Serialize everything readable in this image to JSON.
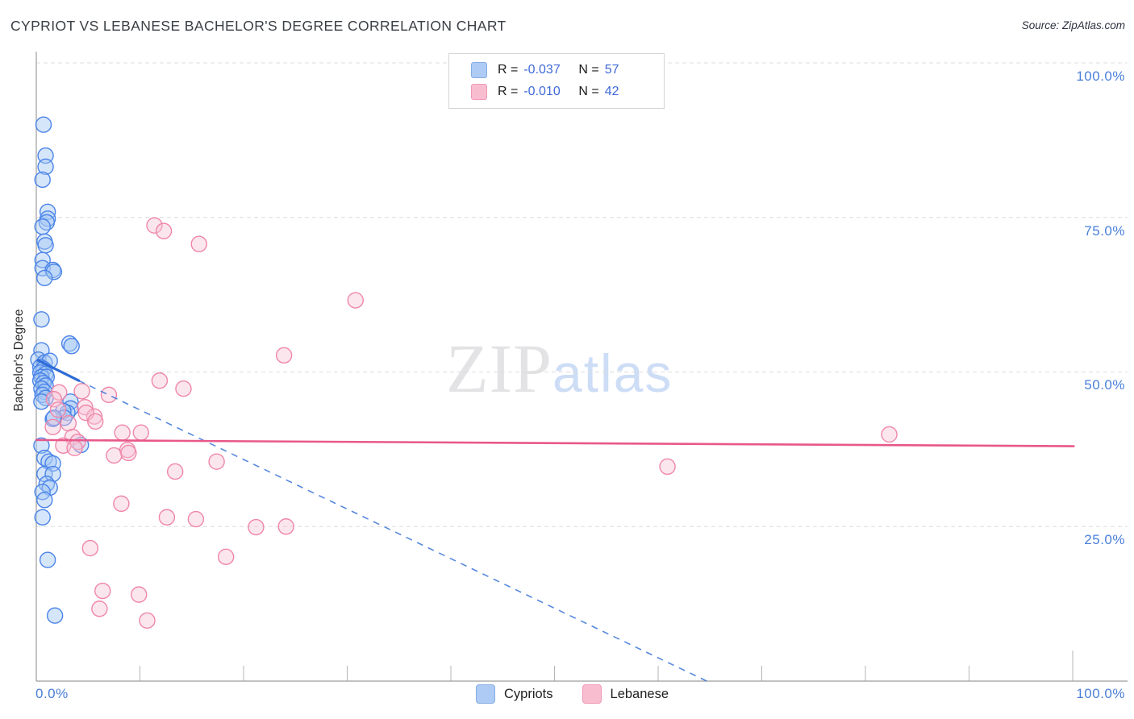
{
  "header": {
    "title": "CYPRIOT VS LEBANESE BACHELOR'S DEGREE CORRELATION CHART",
    "source": "Source: ZipAtlas.com"
  },
  "watermark": {
    "part1": "ZIP",
    "part2": "atlas"
  },
  "legend_box": {
    "rows": [
      {
        "series": "Cypriots",
        "r_label": "R =",
        "r_value": "-0.037",
        "n_label": "N =",
        "n_value": "57"
      },
      {
        "series": "Lebanese",
        "r_label": "R =",
        "r_value": "-0.010",
        "n_label": "N =",
        "n_value": "42"
      }
    ]
  },
  "bottom_legend": {
    "items": [
      {
        "label": "Cypriots"
      },
      {
        "label": "Lebanese"
      }
    ]
  },
  "chart_data": {
    "type": "scatter",
    "title": "CYPRIOT VS LEBANESE BACHELOR'S DEGREE CORRELATION CHART",
    "xlabel": "",
    "ylabel": "Bachelor's Degree",
    "grid": "horizontal dashed gridlines at 25/50/75/100",
    "legend_position": "top-center and bottom-center",
    "x_axis": {
      "min": 0,
      "max": 100,
      "tick_values": [
        0,
        10,
        20,
        30,
        40,
        50,
        60,
        70,
        80,
        90,
        100
      ],
      "edge_labels": [
        "0.0%",
        "100.0%"
      ]
    },
    "y_axis": {
      "min": 0,
      "max": 100,
      "gridline_values": [
        100,
        75,
        50,
        25
      ],
      "tick_labels": [
        "100.0%",
        "75.0%",
        "50.0%",
        "25.0%"
      ]
    },
    "series": [
      {
        "name": "Cypriots",
        "R": -0.037,
        "N": 57,
        "stroke": "#4b84e8",
        "fill": "rgba(164,199,244,0.45)",
        "points": [
          [
            0.7,
            90.0
          ],
          [
            0.9,
            85.0
          ],
          [
            0.9,
            83.2
          ],
          [
            0.6,
            81.1
          ],
          [
            1.1,
            75.9
          ],
          [
            1.1,
            74.8
          ],
          [
            1.0,
            74.2
          ],
          [
            0.6,
            73.5
          ],
          [
            0.8,
            71.1
          ],
          [
            0.9,
            70.5
          ],
          [
            0.6,
            68.1
          ],
          [
            0.6,
            66.8
          ],
          [
            1.6,
            66.5
          ],
          [
            1.7,
            66.2
          ],
          [
            0.8,
            65.2
          ],
          [
            0.5,
            58.5
          ],
          [
            3.2,
            54.6
          ],
          [
            3.4,
            54.2
          ],
          [
            0.5,
            53.5
          ],
          [
            0.2,
            52.0
          ],
          [
            0.8,
            51.5
          ],
          [
            1.3,
            51.8
          ],
          [
            0.4,
            50.8
          ],
          [
            0.7,
            50.5
          ],
          [
            0.4,
            49.9
          ],
          [
            0.9,
            49.7
          ],
          [
            0.5,
            49.2
          ],
          [
            1.0,
            49.2
          ],
          [
            0.4,
            48.6
          ],
          [
            0.7,
            48.2
          ],
          [
            0.9,
            47.8
          ],
          [
            0.5,
            47.3
          ],
          [
            0.8,
            46.8
          ],
          [
            0.6,
            46.3
          ],
          [
            0.9,
            45.8
          ],
          [
            0.5,
            45.2
          ],
          [
            3.3,
            45.2
          ],
          [
            3.3,
            44.1
          ],
          [
            3.0,
            43.4
          ],
          [
            2.6,
            43.7
          ],
          [
            2.7,
            42.6
          ],
          [
            1.6,
            42.4
          ],
          [
            1.7,
            42.6
          ],
          [
            4.3,
            38.2
          ],
          [
            0.5,
            38.1
          ],
          [
            0.8,
            36.1
          ],
          [
            1.2,
            35.5
          ],
          [
            1.6,
            35.2
          ],
          [
            0.8,
            33.5
          ],
          [
            1.6,
            33.5
          ],
          [
            1.0,
            31.9
          ],
          [
            1.3,
            31.3
          ],
          [
            0.6,
            30.6
          ],
          [
            0.8,
            29.3
          ],
          [
            0.6,
            26.5
          ],
          [
            1.1,
            19.6
          ],
          [
            1.8,
            10.6
          ]
        ]
      },
      {
        "name": "Lebanese",
        "R": -0.01,
        "N": 42,
        "stroke": "#ef87a8",
        "fill": "rgba(249,196,214,0.42)",
        "points": [
          [
            11.4,
            73.7
          ],
          [
            12.3,
            72.8
          ],
          [
            15.7,
            70.7
          ],
          [
            30.8,
            61.6
          ],
          [
            23.9,
            52.7
          ],
          [
            11.9,
            48.6
          ],
          [
            14.2,
            47.3
          ],
          [
            7.0,
            46.3
          ],
          [
            4.4,
            46.9
          ],
          [
            2.2,
            46.7
          ],
          [
            1.7,
            45.6
          ],
          [
            4.7,
            44.3
          ],
          [
            5.6,
            42.8
          ],
          [
            3.1,
            41.7
          ],
          [
            3.5,
            39.5
          ],
          [
            4.0,
            38.7
          ],
          [
            2.6,
            38.1
          ],
          [
            3.7,
            37.7
          ],
          [
            8.3,
            40.2
          ],
          [
            10.1,
            40.2
          ],
          [
            8.8,
            37.4
          ],
          [
            7.5,
            36.5
          ],
          [
            17.4,
            35.5
          ],
          [
            13.4,
            33.9
          ],
          [
            8.2,
            28.7
          ],
          [
            12.6,
            26.5
          ],
          [
            15.4,
            26.2
          ],
          [
            21.2,
            24.9
          ],
          [
            24.1,
            25.0
          ],
          [
            5.2,
            21.5
          ],
          [
            18.3,
            20.1
          ],
          [
            6.4,
            14.6
          ],
          [
            9.9,
            14.0
          ],
          [
            6.1,
            11.7
          ],
          [
            10.7,
            9.8
          ],
          [
            60.9,
            34.7
          ],
          [
            82.3,
            39.9
          ],
          [
            2.1,
            43.9
          ],
          [
            1.6,
            41.1
          ],
          [
            4.8,
            43.4
          ],
          [
            5.7,
            42.0
          ],
          [
            8.9,
            36.9
          ]
        ]
      }
    ],
    "trendlines": [
      {
        "series": "Cypriots",
        "color": "#2e6bd6",
        "solid": [
          [
            0.15,
            51.9
          ],
          [
            4.1,
            48.6
          ]
        ],
        "dashed": [
          [
            4.1,
            48.6
          ],
          [
            64.7,
            0.0
          ]
        ]
      },
      {
        "series": "Lebanese",
        "color": "#e8588a",
        "solid": [
          [
            0.0,
            39.0
          ],
          [
            100.1,
            38.0
          ]
        ]
      }
    ]
  },
  "colors": {
    "axis_label_blue": "#4a7fd9",
    "grid_gray": "#dcdcdc",
    "axis_gray": "#9e9e9e",
    "tick_gray": "#b5b5b5"
  }
}
